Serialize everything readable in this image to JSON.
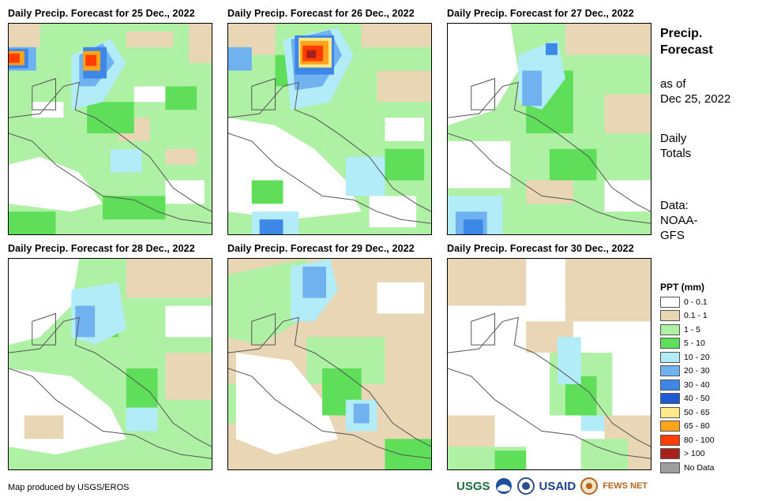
{
  "panels": [
    {
      "title": "Daily Precip. Forecast for 25 Dec., 2022"
    },
    {
      "title": "Daily Precip. Forecast for 26 Dec., 2022"
    },
    {
      "title": "Daily Precip. Forecast for 27 Dec., 2022"
    },
    {
      "title": "Daily Precip. Forecast for 28 Dec., 2022"
    },
    {
      "title": "Daily Precip. Forecast for 29 Dec., 2022"
    },
    {
      "title": "Daily Precip. Forecast for 30 Dec., 2022"
    }
  ],
  "side": {
    "title_line1": "Precip.",
    "title_line2": "Forecast",
    "asof_line1": "as of",
    "asof_line2": "Dec 25, 2022",
    "totals_line1": "Daily",
    "totals_line2": "Totals",
    "data_line1": "Data:",
    "data_line2": "NOAA-",
    "data_line3": "GFS"
  },
  "legend": {
    "title": "PPT (mm)",
    "items": [
      {
        "label": "0 - 0.1",
        "color": "#ffffff"
      },
      {
        "label": "0.1 - 1",
        "color": "#e8d6b4"
      },
      {
        "label": "1 - 5",
        "color": "#aef0a4"
      },
      {
        "label": "5 - 10",
        "color": "#5fde5a"
      },
      {
        "label": "10 - 20",
        "color": "#b2ecf8"
      },
      {
        "label": "20 - 30",
        "color": "#6fb2ef"
      },
      {
        "label": "30 - 40",
        "color": "#3d88e6"
      },
      {
        "label": "40 - 50",
        "color": "#1f59d8"
      },
      {
        "label": "50 - 65",
        "color": "#ffe98a"
      },
      {
        "label": "65 - 80",
        "color": "#ffa31a"
      },
      {
        "label": "80 - 100",
        "color": "#ff3d00"
      },
      {
        "label": "> 100",
        "color": "#a8201a"
      },
      {
        "label": "No Data",
        "color": "#9e9e9e"
      }
    ]
  },
  "credit": "Map produced by USGS/EROS",
  "logos": {
    "usgs": "USGS",
    "usaid": "USAID",
    "fewsnet": "FEWS NET"
  }
}
